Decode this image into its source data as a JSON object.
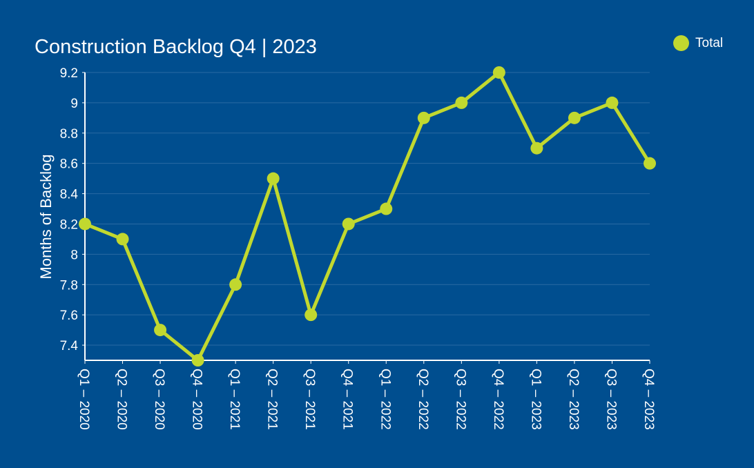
{
  "chart_data": {
    "type": "line",
    "title": "Construction Backlog Q4 | 2023",
    "xlabel": "",
    "ylabel": "Months of Backlog",
    "categories": [
      "Q1 – 2020",
      "Q2 – 2020",
      "Q3 – 2020",
      "Q4 – 2020",
      "Q1 – 2021",
      "Q2 – 2021",
      "Q3 – 2021",
      "Q4 – 2021",
      "Q1 – 2022",
      "Q2 – 2022",
      "Q3 – 2022",
      "Q4 – 2022",
      "Q1 – 2023",
      "Q2 – 2023",
      "Q3 – 2023",
      "Q4 – 2023"
    ],
    "series": [
      {
        "name": "Total",
        "values": [
          8.2,
          8.1,
          7.5,
          7.3,
          7.8,
          8.5,
          7.6,
          8.2,
          8.3,
          8.9,
          9.0,
          9.2,
          8.7,
          8.9,
          9.0,
          8.6
        ]
      }
    ],
    "ylim": [
      7.3,
      9.2
    ],
    "yticks": [
      "7.4",
      "7.6",
      "7.8",
      "8",
      "8.2",
      "8.4",
      "8.6",
      "8.8",
      "9",
      "9.2"
    ],
    "grid": true,
    "legend_position": "top-right",
    "colors": {
      "background": "#004e8f",
      "line": "#c1d82f",
      "grid": "#2a6aa3",
      "text": "#ffffff"
    }
  }
}
